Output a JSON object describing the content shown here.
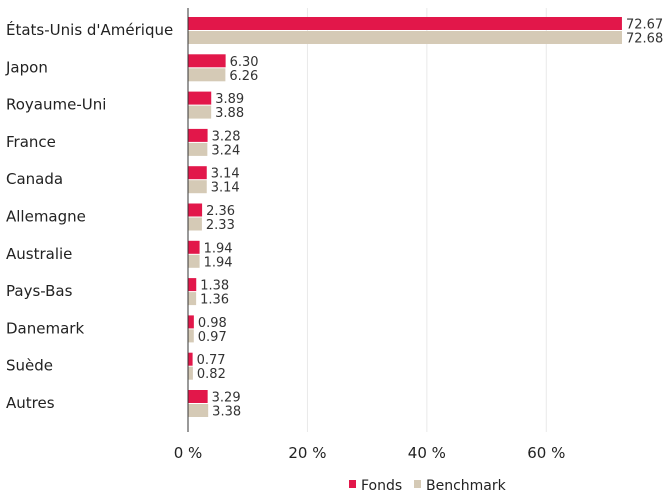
{
  "chart_data": {
    "type": "bar",
    "orientation": "horizontal",
    "categories": [
      "États-Unis d'Amérique",
      "Japon",
      "Royaume-Uni",
      "France",
      "Canada",
      "Allemagne",
      "Australie",
      "Pays-Bas",
      "Danemark",
      "Suède",
      "Autres"
    ],
    "series": [
      {
        "name": "Fonds",
        "color": "#e2174a",
        "values": [
          72.67,
          6.3,
          3.89,
          3.28,
          3.14,
          2.36,
          1.94,
          1.38,
          0.98,
          0.77,
          3.29
        ],
        "labels": [
          "72.67",
          "6.30",
          "3.89",
          "3.28",
          "3.14",
          "2.36",
          "1.94",
          "1.38",
          "0.98",
          "0.77",
          "3.29"
        ]
      },
      {
        "name": "Benchmark",
        "color": "#d5cab6",
        "values": [
          72.68,
          6.26,
          3.88,
          3.24,
          3.14,
          2.33,
          1.94,
          1.36,
          0.97,
          0.82,
          3.38
        ],
        "labels": [
          "72.68",
          "6.26",
          "3.88",
          "3.24",
          "3.14",
          "2.33",
          "1.94",
          "1.36",
          "0.97",
          "0.82",
          "3.38"
        ]
      }
    ],
    "xlim": [
      0,
      72.68
    ],
    "xticks": [
      0,
      20,
      40,
      60
    ],
    "xtick_labels": [
      "0 %",
      "20 %",
      "40 %",
      "60 %"
    ],
    "grid": true,
    "legend_position": "bottom-right",
    "title": "",
    "xlabel": "",
    "ylabel": ""
  }
}
